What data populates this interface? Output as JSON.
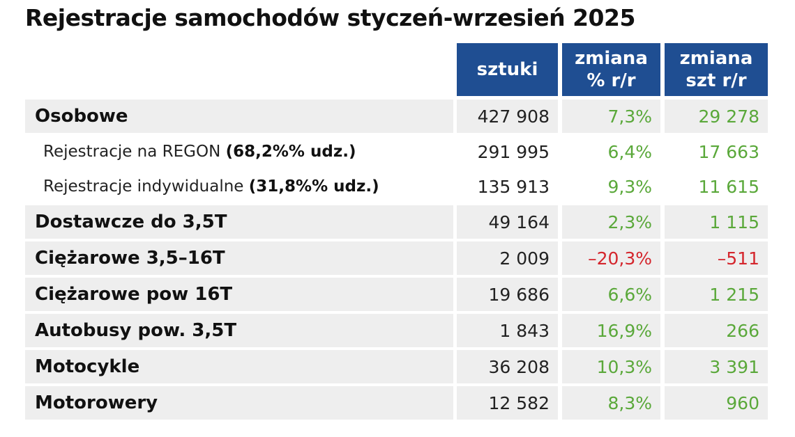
{
  "title": "Rejestracje samochodów styczeń-wrzesień 2025",
  "table": {
    "columns": [
      "sztuki",
      "zmiana % r/r",
      "zmiana szt r/r"
    ],
    "header_color": "#1f4e92",
    "positive_color": "#5aa83a",
    "negative_color": "#d4252c",
    "rows": [
      {
        "label": "Osobowe",
        "level": "main",
        "cells": [
          "427 908",
          "7,3%",
          "29 278"
        ],
        "negative": false
      },
      {
        "label": "Rejestracje na REGON ",
        "label_bold": "(68,2%% udz.)",
        "level": "sub",
        "cells": [
          "291 995",
          "6,4%",
          "17 663"
        ],
        "negative": false
      },
      {
        "label": "Rejestracje indywidualne ",
        "label_bold": "(31,8%% udz.)",
        "level": "sub",
        "cells": [
          "135 913",
          "9,3%",
          "11 615"
        ],
        "negative": false
      },
      {
        "label": "Dostawcze do 3,5T",
        "level": "main",
        "cells": [
          "49 164",
          "2,3%",
          "1 115"
        ],
        "negative": false
      },
      {
        "label": "Ciężarowe 3,5–16T",
        "level": "main",
        "cells": [
          "2 009",
          "–20,3%",
          "–511"
        ],
        "negative": true
      },
      {
        "label": "Ciężarowe pow 16T",
        "level": "main",
        "cells": [
          "19 686",
          "6,6%",
          "1 215"
        ],
        "negative": false
      },
      {
        "label": "Autobusy pow. 3,5T",
        "level": "main",
        "cells": [
          "1 843",
          "16,9%",
          "266"
        ],
        "negative": false
      },
      {
        "label": "Motocykle",
        "level": "main",
        "cells": [
          "36 208",
          "10,3%",
          "3 391"
        ],
        "negative": false
      },
      {
        "label": "Motorowery",
        "level": "main",
        "cells": [
          "12 582",
          "8,3%",
          "960"
        ],
        "negative": false
      }
    ]
  }
}
